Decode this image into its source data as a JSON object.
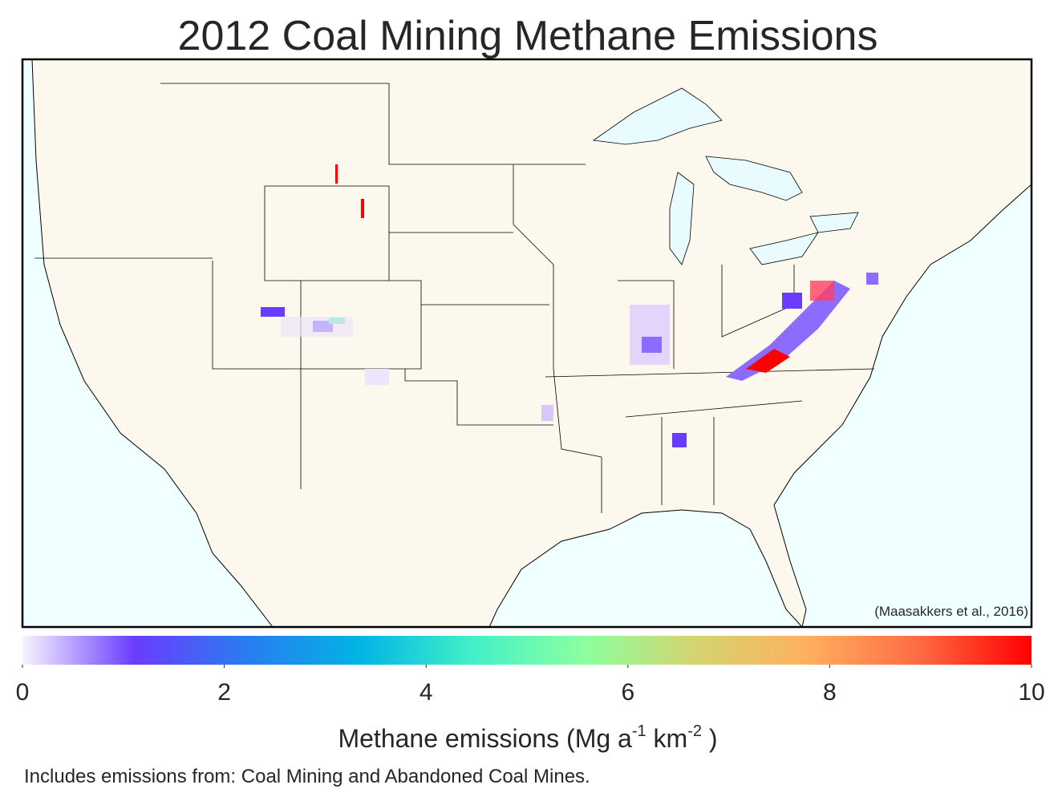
{
  "title": "2012 Coal Mining Methane Emissions",
  "citation": "(Maasakkers et al., 2016)",
  "colorbar": {
    "lim": [
      0,
      10
    ],
    "ticks": [
      0,
      2,
      4,
      6,
      8,
      10
    ],
    "colors": [
      "#f8f4ff",
      "#6a3cff",
      "#2a7cf0",
      "#00b4e4",
      "#40f0c8",
      "#8cffa0",
      "#d4d470",
      "#ffb060",
      "#ff6a44",
      "#ff0000"
    ],
    "label_parts": [
      "Methane emissions (Mg a",
      "-1",
      "  km",
      "-2",
      " )"
    ]
  },
  "footnote": "Includes emissions from: Coal Mining and Abandoned Coal Mines."
}
